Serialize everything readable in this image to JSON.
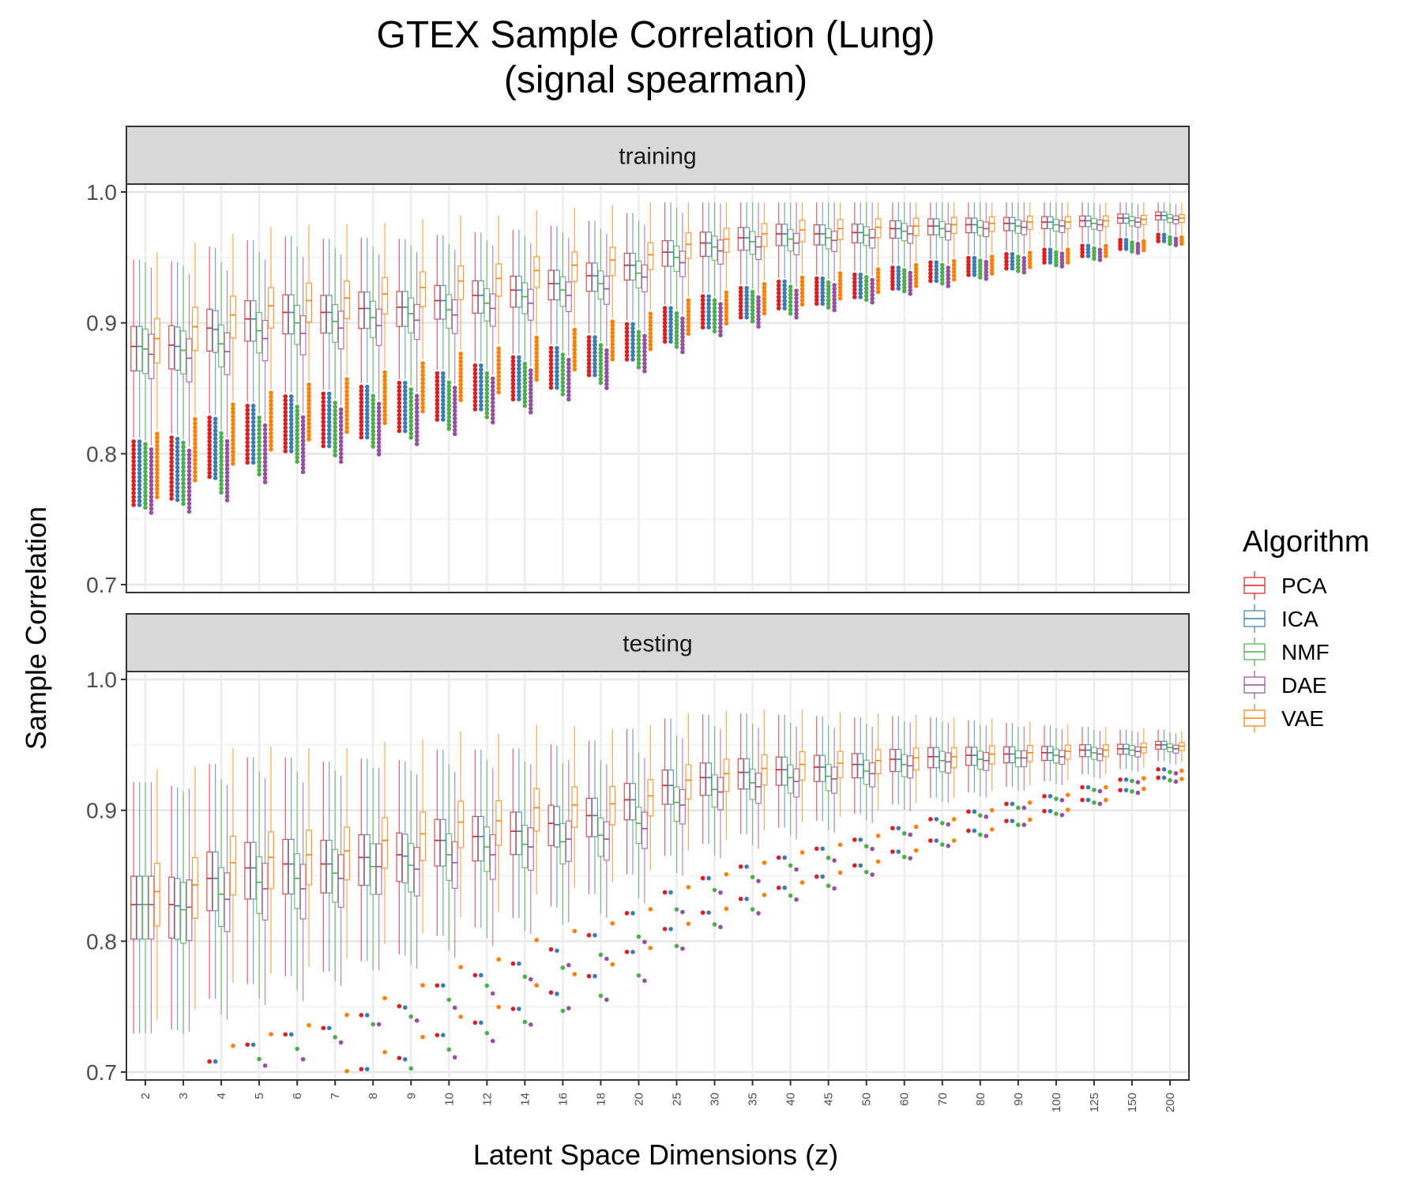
{
  "chart_data": {
    "type": "box",
    "title": "GTEX Sample Correlation (Lung)",
    "subtitle": "(signal spearman)",
    "xlabel": "Latent Space Dimensions (z)",
    "ylabel": "Sample Correlation",
    "categories": [
      "2",
      "3",
      "4",
      "5",
      "6",
      "7",
      "8",
      "9",
      "10",
      "12",
      "14",
      "16",
      "18",
      "20",
      "25",
      "30",
      "35",
      "40",
      "45",
      "50",
      "60",
      "70",
      "80",
      "90",
      "100",
      "125",
      "150",
      "200"
    ],
    "ylim": [
      0.7,
      1.0
    ],
    "yticks": [
      "0.7",
      "0.8",
      "0.9",
      "1.0"
    ],
    "legend": {
      "title": "Algorithm",
      "position": "right",
      "items": [
        {
          "name": "PCA",
          "color": "#e41a1c"
        },
        {
          "name": "ICA",
          "color": "#377eb8"
        },
        {
          "name": "NMF",
          "color": "#4daf4a"
        },
        {
          "name": "DAE",
          "color": "#984ea3"
        },
        {
          "name": "VAE",
          "color": "#ff7f00"
        }
      ]
    },
    "grid": true,
    "panels": [
      {
        "label": "training",
        "medians": {
          "PCA": [
            0.882,
            0.883,
            0.896,
            0.903,
            0.908,
            0.908,
            0.911,
            0.912,
            0.917,
            0.921,
            0.925,
            0.93,
            0.936,
            0.944,
            0.954,
            0.961,
            0.965,
            0.968,
            0.968,
            0.969,
            0.972,
            0.974,
            0.975,
            0.976,
            0.977,
            0.978,
            0.98,
            0.982
          ],
          "ICA": [
            0.882,
            0.882,
            0.895,
            0.903,
            0.908,
            0.908,
            0.911,
            0.912,
            0.917,
            0.921,
            0.925,
            0.93,
            0.936,
            0.944,
            0.954,
            0.961,
            0.965,
            0.968,
            0.968,
            0.969,
            0.972,
            0.974,
            0.975,
            0.976,
            0.977,
            0.978,
            0.98,
            0.982
          ],
          "NMF": [
            0.88,
            0.879,
            0.884,
            0.894,
            0.9,
            0.901,
            0.904,
            0.907,
            0.91,
            0.915,
            0.92,
            0.925,
            0.93,
            0.938,
            0.95,
            0.958,
            0.962,
            0.964,
            0.965,
            0.967,
            0.97,
            0.972,
            0.973,
            0.974,
            0.975,
            0.976,
            0.978,
            0.98
          ],
          "DAE": [
            0.876,
            0.873,
            0.878,
            0.888,
            0.892,
            0.896,
            0.898,
            0.902,
            0.906,
            0.911,
            0.915,
            0.921,
            0.926,
            0.935,
            0.946,
            0.955,
            0.958,
            0.961,
            0.963,
            0.965,
            0.968,
            0.97,
            0.972,
            0.973,
            0.974,
            0.975,
            0.977,
            0.979
          ],
          "VAE": [
            0.888,
            0.897,
            0.906,
            0.913,
            0.917,
            0.919,
            0.922,
            0.927,
            0.932,
            0.934,
            0.94,
            0.944,
            0.948,
            0.952,
            0.96,
            0.964,
            0.968,
            0.971,
            0.972,
            0.973,
            0.974,
            0.975,
            0.976,
            0.977,
            0.977,
            0.978,
            0.979,
            0.98
          ]
        }
      },
      {
        "label": "testing",
        "medians": {
          "PCA": [
            0.828,
            0.828,
            0.848,
            0.856,
            0.859,
            0.859,
            0.864,
            0.866,
            0.877,
            0.88,
            0.884,
            0.89,
            0.896,
            0.908,
            0.919,
            0.925,
            0.929,
            0.931,
            0.933,
            0.935,
            0.939,
            0.941,
            0.942,
            0.943,
            0.944,
            0.946,
            0.947,
            0.95
          ],
          "ICA": [
            0.828,
            0.827,
            0.848,
            0.856,
            0.859,
            0.859,
            0.864,
            0.865,
            0.877,
            0.88,
            0.884,
            0.889,
            0.896,
            0.908,
            0.919,
            0.925,
            0.929,
            0.931,
            0.933,
            0.935,
            0.939,
            0.941,
            0.942,
            0.943,
            0.944,
            0.946,
            0.947,
            0.95
          ],
          "NMF": [
            0.828,
            0.824,
            0.836,
            0.845,
            0.848,
            0.852,
            0.857,
            0.858,
            0.866,
            0.872,
            0.874,
            0.876,
            0.881,
            0.89,
            0.906,
            0.916,
            0.921,
            0.925,
            0.926,
            0.93,
            0.935,
            0.938,
            0.939,
            0.94,
            0.942,
            0.944,
            0.946,
            0.948
          ],
          "DAE": [
            0.828,
            0.826,
            0.832,
            0.84,
            0.84,
            0.848,
            0.857,
            0.855,
            0.86,
            0.866,
            0.872,
            0.878,
            0.878,
            0.886,
            0.904,
            0.914,
            0.918,
            0.922,
            0.924,
            0.928,
            0.934,
            0.937,
            0.938,
            0.94,
            0.941,
            0.943,
            0.945,
            0.947
          ],
          "VAE": [
            0.838,
            0.843,
            0.86,
            0.864,
            0.866,
            0.869,
            0.877,
            0.882,
            0.891,
            0.892,
            0.902,
            0.904,
            0.905,
            0.911,
            0.923,
            0.928,
            0.932,
            0.935,
            0.936,
            0.938,
            0.94,
            0.941,
            0.943,
            0.944,
            0.945,
            0.946,
            0.948,
            0.949
          ]
        }
      }
    ]
  }
}
